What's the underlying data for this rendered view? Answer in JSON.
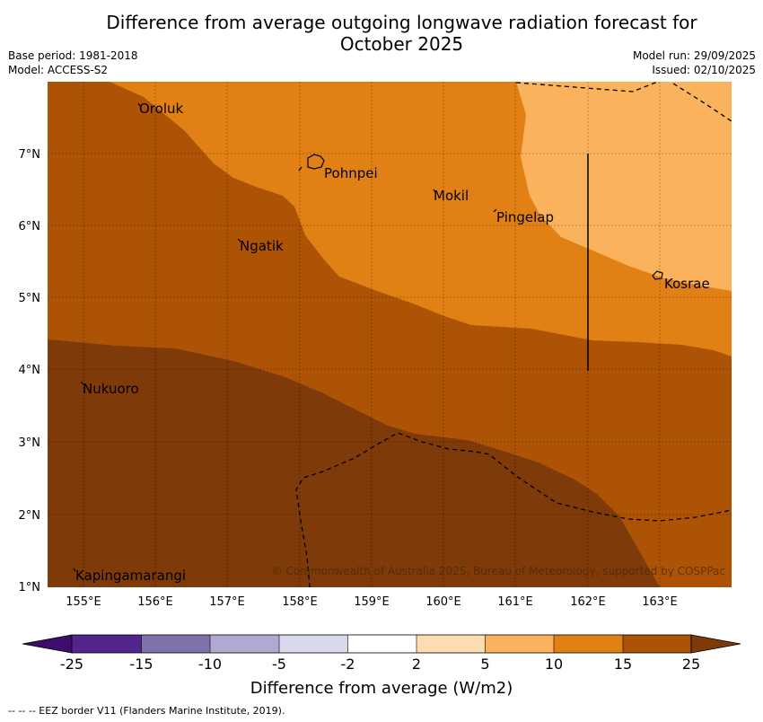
{
  "title": {
    "line1": "Difference from average outgoing longwave radiation forecast for",
    "line2": "October 2025"
  },
  "meta": {
    "base_period": "Base period: 1981-2018",
    "model": "Model: ACCESS-S2",
    "model_run": "Model run: 29/09/2025",
    "issued": "Issued: 02/10/2025"
  },
  "map": {
    "lat_ticks": [
      "1°N",
      "2°N",
      "3°N",
      "4°N",
      "5°N",
      "6°N",
      "7°N"
    ],
    "lon_ticks": [
      "155°E",
      "156°E",
      "157°E",
      "158°E",
      "159°E",
      "160°E",
      "161°E",
      "162°E",
      "163°E"
    ],
    "places": [
      "Oroluk",
      "Pohnpei",
      "Mokil",
      "Pingelap",
      "Ngatik",
      "Kosrae",
      "Nukuoro",
      "Kapingamarangi"
    ],
    "copyright": "© Commonwealth of Australia 2025, Bureau of Meteorology, supported by COSPPac",
    "fill_colors": {
      "c15_25": "#ad5306",
      "c25_plus": "#7e3a08",
      "c10_15": "#e08015",
      "c5_10": "#fab35c"
    }
  },
  "legend": {
    "ticks": [
      "-25",
      "-15",
      "-10",
      "-5",
      "-2",
      "2",
      "5",
      "10",
      "15",
      "25"
    ],
    "colors": [
      "#3f0b6d",
      "#53258c",
      "#7f72aa",
      "#b1a9d1",
      "#d9d9ec",
      "#ffffff",
      "#fddcb2",
      "#fab35c",
      "#e08015",
      "#ad5306",
      "#7e3a08"
    ],
    "label": "Difference from average (W/m2)"
  },
  "footnote": "--  --  -- EEZ border V11 (Flanders Marine Institute, 2019)."
}
